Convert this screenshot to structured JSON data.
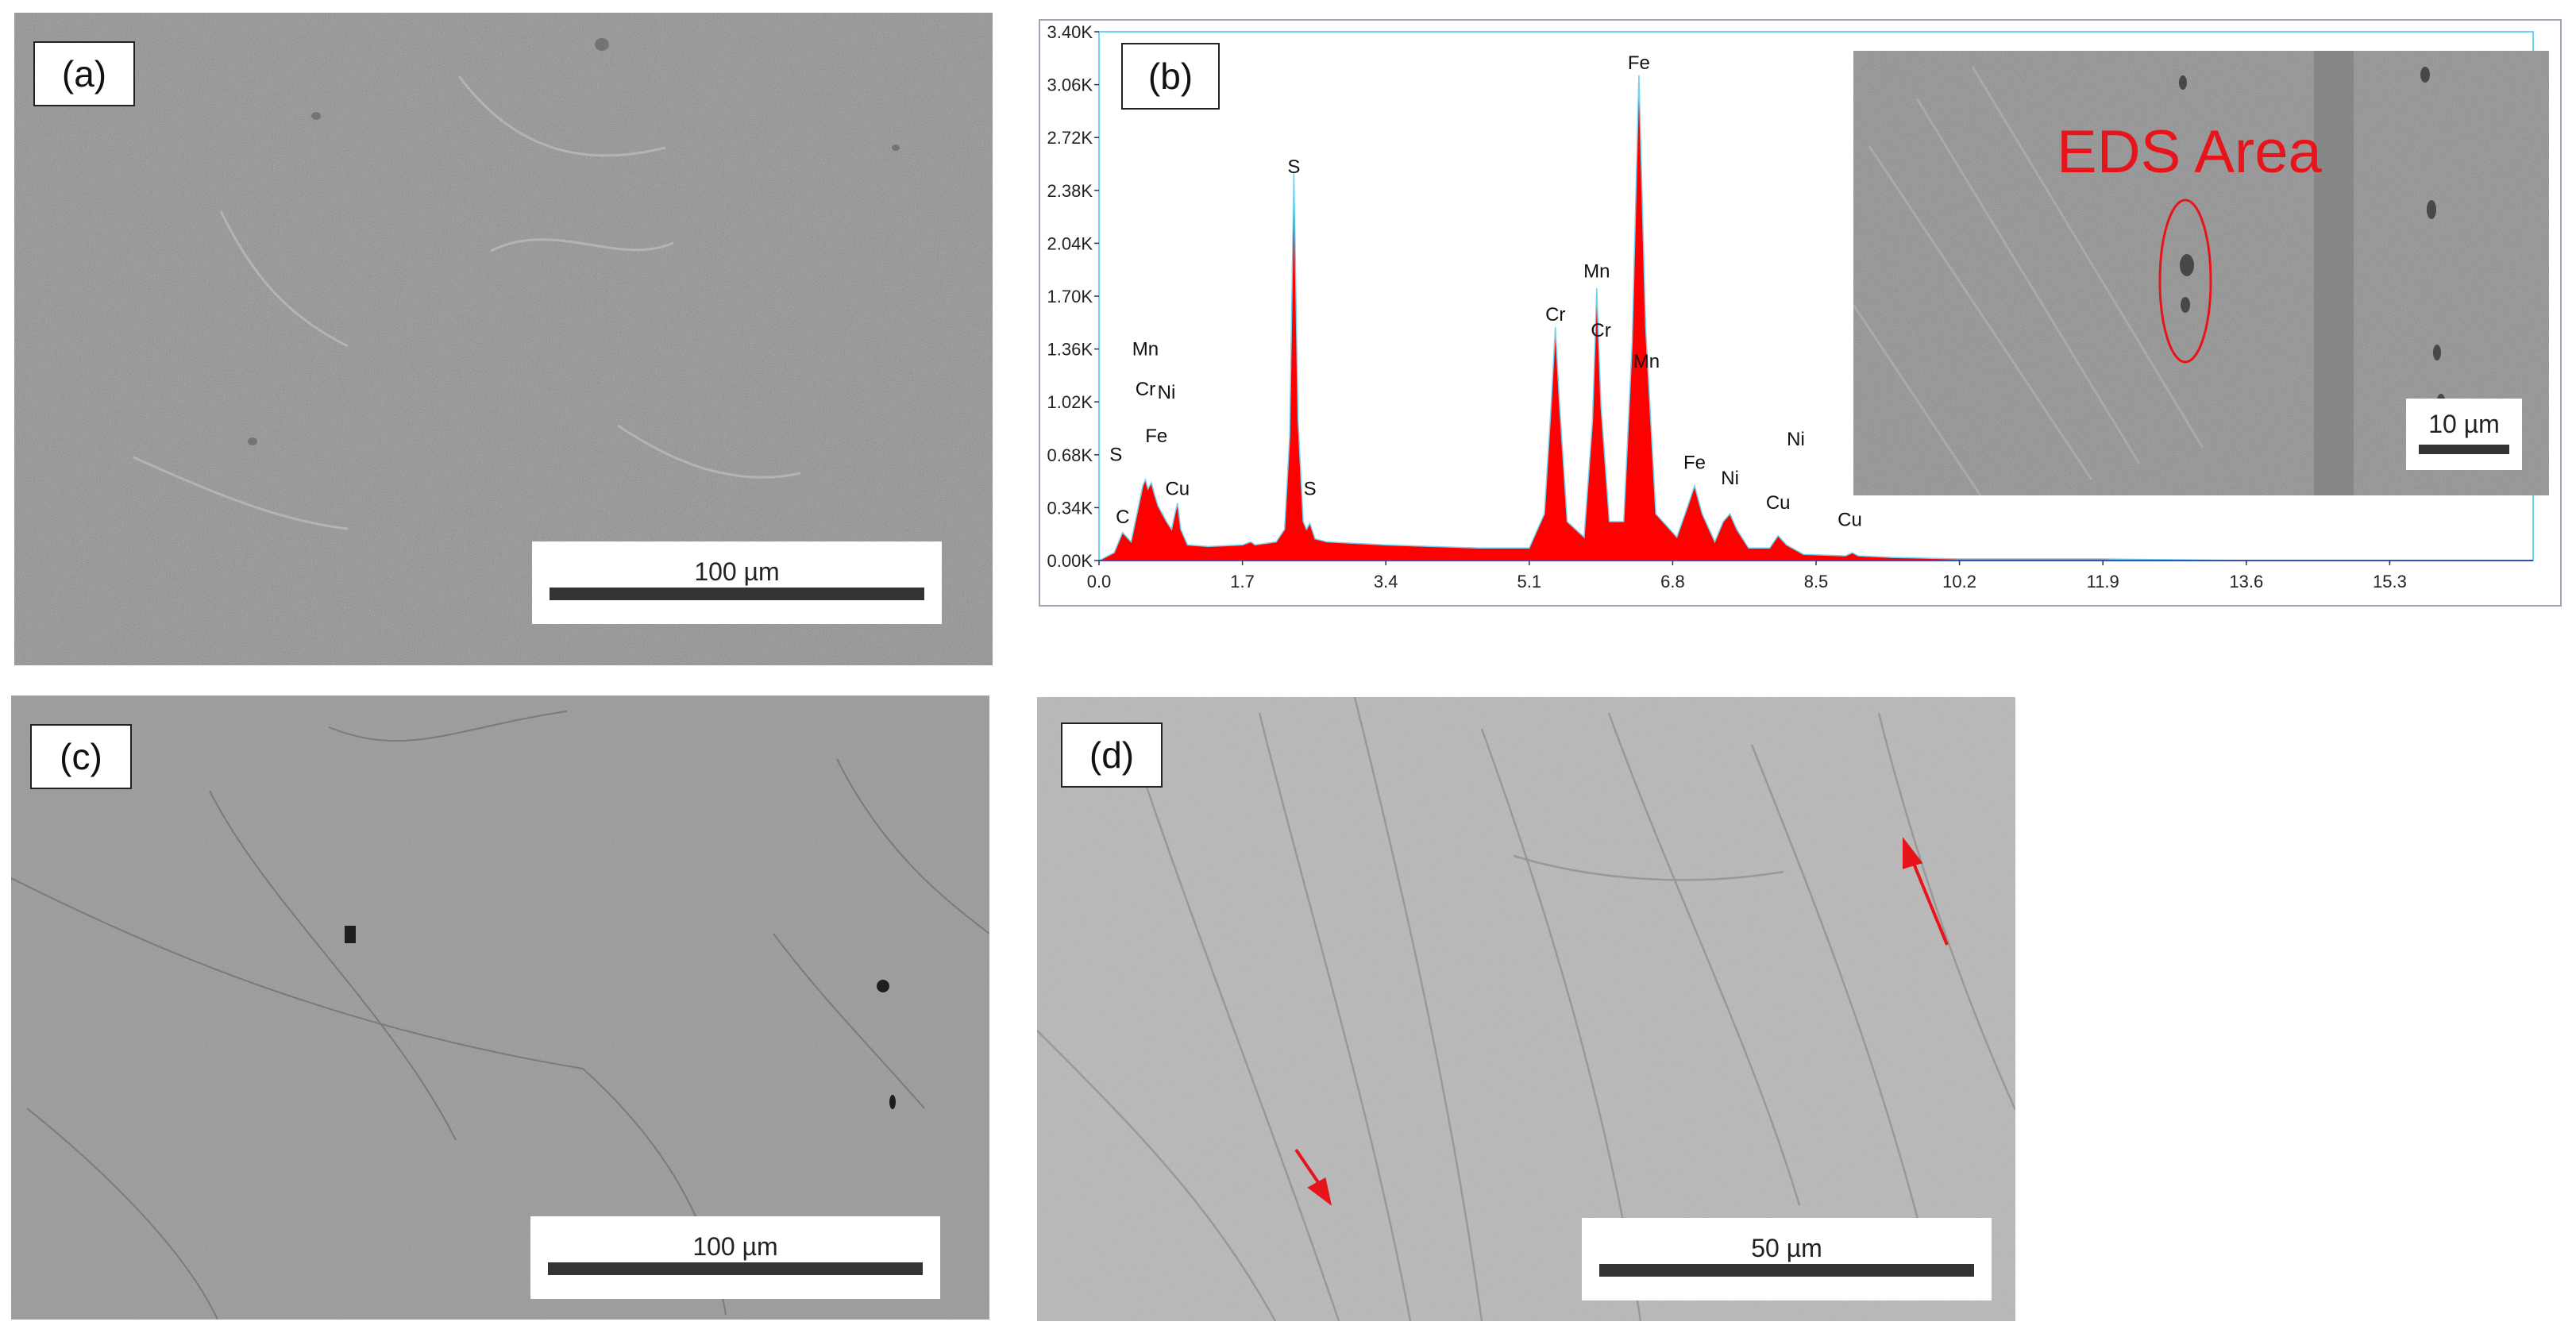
{
  "panels": {
    "a": {
      "label": "(a)",
      "scale_text": "100 µm"
    },
    "b": {
      "label": "(b)",
      "inset_title": "EDS Area",
      "inset_scale_text": "10 µm"
    },
    "c": {
      "label": "(c)",
      "scale_text": "100 µm"
    },
    "d": {
      "label": "(d)",
      "scale_text": "50 µm"
    }
  },
  "colors": {
    "spectrum_fill": "#ff0000",
    "spectrum_edge": "#6fd3f0",
    "annotation": "#e8141c",
    "frame": "#9aa6b4"
  },
  "chart_data": {
    "type": "area",
    "title": "",
    "xlabel": "",
    "ylabel": "",
    "xlim": [
      0.0,
      17.0
    ],
    "ylim": [
      0.0,
      3.4
    ],
    "x_ticks": [
      "0.0",
      "1.7",
      "3.4",
      "5.1",
      "6.8",
      "8.5",
      "10.2",
      "11.9",
      "13.6",
      "15.3"
    ],
    "y_ticks": [
      "0.00K",
      "0.34K",
      "0.68K",
      "1.02K",
      "1.36K",
      "1.70K",
      "2.04K",
      "2.38K",
      "2.72K",
      "3.06K",
      "3.40K"
    ],
    "peaks": [
      {
        "label": "C",
        "x": 0.28,
        "y": 0.2
      },
      {
        "label": "S",
        "x": 0.2,
        "y": 0.6
      },
      {
        "label": "Mn",
        "x": 0.55,
        "y": 1.28
      },
      {
        "label": "Cr",
        "x": 0.55,
        "y": 1.02
      },
      {
        "label": "Ni",
        "x": 0.8,
        "y": 1.0
      },
      {
        "label": "Fe",
        "x": 0.68,
        "y": 0.72
      },
      {
        "label": "Cu",
        "x": 0.93,
        "y": 0.38
      },
      {
        "label": "S",
        "x": 2.31,
        "y": 2.45
      },
      {
        "label": "S",
        "x": 2.5,
        "y": 0.38
      },
      {
        "label": "Cr",
        "x": 5.41,
        "y": 1.5
      },
      {
        "label": "Mn",
        "x": 5.9,
        "y": 1.78
      },
      {
        "label": "Cr",
        "x": 5.95,
        "y": 1.4
      },
      {
        "label": "Fe",
        "x": 6.4,
        "y": 3.12
      },
      {
        "label": "Mn",
        "x": 6.49,
        "y": 1.2
      },
      {
        "label": "Fe",
        "x": 7.06,
        "y": 0.55
      },
      {
        "label": "Ni",
        "x": 7.48,
        "y": 0.45
      },
      {
        "label": "Ni",
        "x": 8.26,
        "y": 0.7
      },
      {
        "label": "Cu",
        "x": 8.05,
        "y": 0.29
      },
      {
        "label": "Cu",
        "x": 8.9,
        "y": 0.18
      }
    ],
    "spectrum": {
      "x": [
        0.0,
        0.18,
        0.28,
        0.38,
        0.45,
        0.52,
        0.55,
        0.58,
        0.62,
        0.66,
        0.7,
        0.75,
        0.8,
        0.86,
        0.9,
        0.93,
        0.97,
        1.05,
        1.3,
        1.7,
        1.8,
        1.85,
        2.1,
        2.2,
        2.26,
        2.31,
        2.36,
        2.42,
        2.46,
        2.5,
        2.56,
        2.7,
        3.4,
        4.5,
        5.1,
        5.28,
        5.36,
        5.41,
        5.46,
        5.55,
        5.75,
        5.85,
        5.9,
        5.95,
        6.05,
        6.22,
        6.32,
        6.4,
        6.48,
        6.6,
        6.85,
        6.98,
        7.06,
        7.15,
        7.3,
        7.4,
        7.48,
        7.56,
        7.7,
        7.95,
        8.05,
        8.15,
        8.35,
        8.85,
        8.93,
        9.0,
        9.4,
        10.2,
        11.9,
        13.6,
        15.3,
        17.0
      ],
      "y": [
        0.0,
        0.05,
        0.18,
        0.12,
        0.3,
        0.48,
        0.52,
        0.46,
        0.5,
        0.42,
        0.35,
        0.3,
        0.25,
        0.2,
        0.3,
        0.37,
        0.2,
        0.1,
        0.09,
        0.1,
        0.12,
        0.1,
        0.12,
        0.2,
        0.8,
        2.5,
        0.9,
        0.25,
        0.2,
        0.24,
        0.14,
        0.12,
        0.1,
        0.08,
        0.08,
        0.3,
        1.0,
        1.5,
        1.0,
        0.25,
        0.15,
        0.9,
        1.75,
        1.0,
        0.25,
        0.25,
        1.4,
        3.12,
        1.5,
        0.3,
        0.15,
        0.35,
        0.48,
        0.3,
        0.12,
        0.25,
        0.3,
        0.2,
        0.08,
        0.08,
        0.16,
        0.1,
        0.04,
        0.03,
        0.05,
        0.03,
        0.02,
        0.01,
        0.01,
        0.0,
        0.0,
        0.0
      ]
    }
  }
}
